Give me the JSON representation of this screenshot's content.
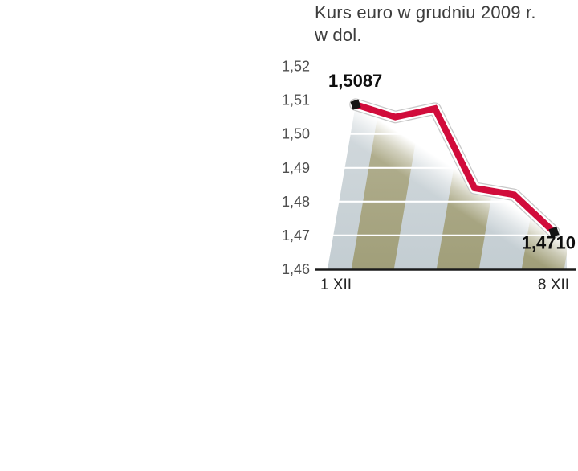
{
  "chart": {
    "title_line1": "Kurs euro w grudniu 2009 r.",
    "title_line2": "w dol."
  },
  "chart_data": {
    "type": "line",
    "title": "Kurs euro w grudniu 2009 r. w dol.",
    "ylabel": "",
    "xlabel": "",
    "ylim": [
      1.46,
      1.52
    ],
    "y_tick_labels": [
      "1,52",
      "1,51",
      "1,50",
      "1,49",
      "1,48",
      "1,47",
      "1,46"
    ],
    "x_tick_labels": [
      "1 XII",
      "8 XII"
    ],
    "values": [
      1.5087,
      1.505,
      1.5075,
      1.484,
      1.482,
      1.471
    ],
    "endpoint_labels": {
      "first": "1,5087",
      "last": "1,4710"
    },
    "legend": "none",
    "grid": "horizontal white gridlines over striped fade background",
    "colors": {
      "line": "#d10c3b",
      "line_casing": "#ffffff",
      "casing_edge": "#c7c7c7",
      "stripe_gray": "#c9d2d6",
      "stripe_olive": "#a9a783",
      "marker": "#141414",
      "axis_line": "#1b1b1b",
      "grid_line": "#ffffff",
      "tick_text": "#4f4f4f",
      "title_text": "#3d3d3d"
    }
  }
}
